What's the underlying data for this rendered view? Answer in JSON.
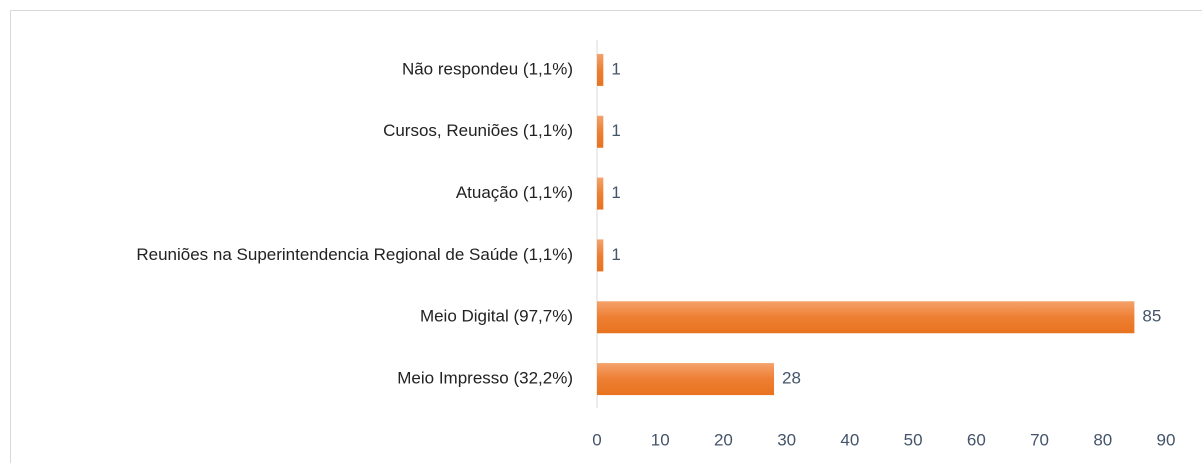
{
  "chart_data": {
    "type": "hbar",
    "categories": [
      "Não respondeu (1,1%)",
      "Cursos, Reuniões (1,1%)",
      "Atuação (1,1%)",
      "Reuniões na Superintendencia Regional de Saúde (1,1%)",
      "Meio Digital (97,7%)",
      "Meio Impresso (32,2%)"
    ],
    "values": [
      1,
      1,
      1,
      1,
      85,
      28
    ],
    "color": "#ed7d31",
    "xlim": [
      0,
      90
    ],
    "xticks": [
      0,
      10,
      20,
      30,
      40,
      50,
      60,
      70,
      80,
      90
    ],
    "grid": false
  }
}
